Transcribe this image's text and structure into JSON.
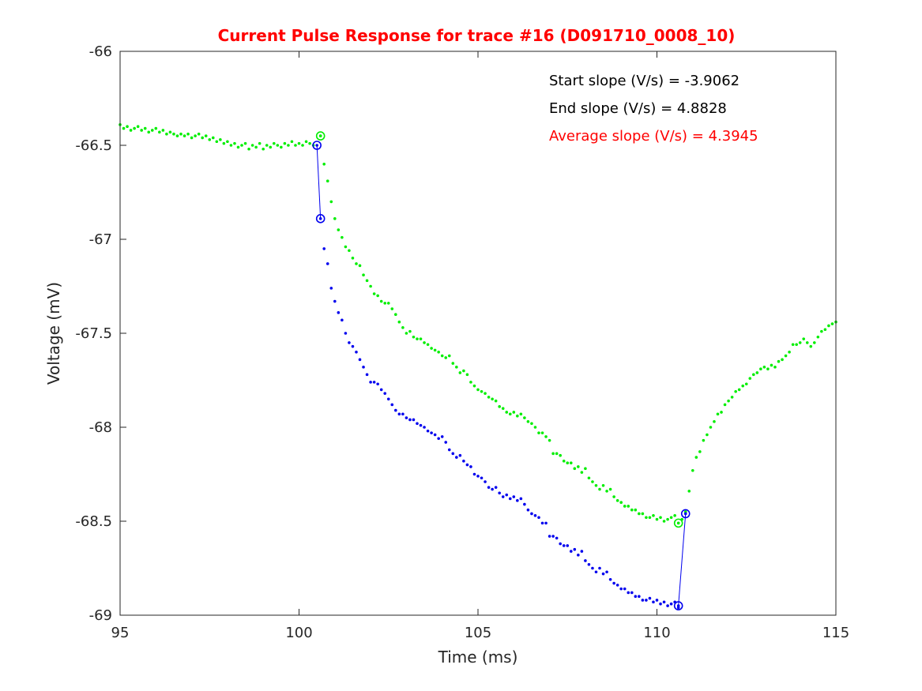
{
  "chart_data": {
    "type": "scatter",
    "title": "Current Pulse Response for trace #16 (D091710_0008_10)",
    "xlabel": "Time (ms)",
    "ylabel": "Voltage (mV)",
    "xlim": [
      95,
      115
    ],
    "ylim": [
      -69,
      -66
    ],
    "xticks": [
      95,
      100,
      105,
      110,
      115
    ],
    "xtick_labels": [
      "95",
      "100",
      "105",
      "110",
      "115"
    ],
    "yticks": [
      -66,
      -66.5,
      -67,
      -67.5,
      -68,
      -68.5,
      -69
    ],
    "ytick_labels": [
      "-66",
      "-66.5",
      "-67",
      "-67.5",
      "-68",
      "-68.5",
      "-69"
    ],
    "grid": false,
    "colors": {
      "green": "#00ee00",
      "blue": "#0000ee",
      "title": "#ff0000",
      "average": "#ff0000"
    },
    "annotations": [
      {
        "text": "Start slope (V/s) = -3.9062",
        "color": "#000000"
      },
      {
        "text": "End slope (V/s) = 4.8828",
        "color": "#000000"
      },
      {
        "text": "Average slope (V/s) = 4.3945",
        "color": "#ff0000"
      }
    ],
    "green_series": {
      "points": [
        [
          95.0,
          -66.39
        ],
        [
          95.1,
          -66.41
        ],
        [
          95.2,
          -66.4
        ],
        [
          95.3,
          -66.42
        ],
        [
          95.4,
          -66.41
        ],
        [
          95.5,
          -66.4
        ],
        [
          95.6,
          -66.42
        ],
        [
          95.7,
          -66.41
        ],
        [
          95.8,
          -66.43
        ],
        [
          95.9,
          -66.42
        ],
        [
          96.0,
          -66.41
        ],
        [
          96.1,
          -66.43
        ],
        [
          96.2,
          -66.42
        ],
        [
          96.3,
          -66.44
        ],
        [
          96.4,
          -66.43
        ],
        [
          96.5,
          -66.44
        ],
        [
          96.6,
          -66.45
        ],
        [
          96.7,
          -66.44
        ],
        [
          96.8,
          -66.45
        ],
        [
          96.9,
          -66.44
        ],
        [
          97.0,
          -66.46
        ],
        [
          97.1,
          -66.45
        ],
        [
          97.2,
          -66.44
        ],
        [
          97.3,
          -66.46
        ],
        [
          97.4,
          -66.45
        ],
        [
          97.5,
          -66.47
        ],
        [
          97.6,
          -66.46
        ],
        [
          97.7,
          -66.48
        ],
        [
          97.8,
          -66.47
        ],
        [
          97.9,
          -66.49
        ],
        [
          98.0,
          -66.48
        ],
        [
          98.1,
          -66.5
        ],
        [
          98.2,
          -66.49
        ],
        [
          98.3,
          -66.51
        ],
        [
          98.4,
          -66.5
        ],
        [
          98.5,
          -66.49
        ],
        [
          98.6,
          -66.52
        ],
        [
          98.7,
          -66.5
        ],
        [
          98.8,
          -66.51
        ],
        [
          98.9,
          -66.49
        ],
        [
          99.0,
          -66.52
        ],
        [
          99.1,
          -66.5
        ],
        [
          99.2,
          -66.51
        ],
        [
          99.3,
          -66.49
        ],
        [
          99.4,
          -66.5
        ],
        [
          99.5,
          -66.51
        ],
        [
          99.6,
          -66.49
        ],
        [
          99.7,
          -66.5
        ],
        [
          99.8,
          -66.48
        ],
        [
          99.9,
          -66.5
        ],
        [
          100.0,
          -66.49
        ],
        [
          100.1,
          -66.5
        ],
        [
          100.2,
          -66.48
        ],
        [
          100.3,
          -66.49
        ],
        [
          100.4,
          -66.5
        ],
        [
          100.6,
          -66.45
        ],
        [
          100.7,
          -66.6
        ],
        [
          100.8,
          -66.69
        ],
        [
          100.9,
          -66.8
        ],
        [
          101.0,
          -66.89
        ],
        [
          101.1,
          -66.95
        ],
        [
          101.2,
          -66.99
        ],
        [
          101.3,
          -67.04
        ],
        [
          101.4,
          -67.06
        ],
        [
          101.5,
          -67.1
        ],
        [
          101.6,
          -67.13
        ],
        [
          101.7,
          -67.14
        ],
        [
          101.8,
          -67.19
        ],
        [
          101.9,
          -67.22
        ],
        [
          102.0,
          -67.25
        ],
        [
          102.1,
          -67.29
        ],
        [
          102.2,
          -67.3
        ],
        [
          102.3,
          -67.33
        ],
        [
          102.4,
          -67.34
        ],
        [
          102.5,
          -67.34
        ],
        [
          102.6,
          -67.37
        ],
        [
          102.7,
          -67.4
        ],
        [
          102.8,
          -67.44
        ],
        [
          102.9,
          -67.47
        ],
        [
          103.0,
          -67.5
        ],
        [
          103.1,
          -67.49
        ],
        [
          103.2,
          -67.52
        ],
        [
          103.3,
          -67.53
        ],
        [
          103.4,
          -67.53
        ],
        [
          103.5,
          -67.55
        ],
        [
          103.6,
          -67.56
        ],
        [
          103.7,
          -67.58
        ],
        [
          103.8,
          -67.59
        ],
        [
          103.9,
          -67.6
        ],
        [
          104.0,
          -67.62
        ],
        [
          104.1,
          -67.63
        ],
        [
          104.2,
          -67.62
        ],
        [
          104.3,
          -67.66
        ],
        [
          104.4,
          -67.68
        ],
        [
          104.5,
          -67.71
        ],
        [
          104.6,
          -67.7
        ],
        [
          104.7,
          -67.72
        ],
        [
          104.8,
          -67.76
        ],
        [
          104.9,
          -67.78
        ],
        [
          105.0,
          -67.8
        ],
        [
          105.1,
          -67.81
        ],
        [
          105.2,
          -67.82
        ],
        [
          105.3,
          -67.84
        ],
        [
          105.4,
          -67.85
        ],
        [
          105.5,
          -67.86
        ],
        [
          105.6,
          -67.89
        ],
        [
          105.7,
          -67.9
        ],
        [
          105.8,
          -67.92
        ],
        [
          105.9,
          -67.93
        ],
        [
          106.0,
          -67.92
        ],
        [
          106.1,
          -67.94
        ],
        [
          106.2,
          -67.93
        ],
        [
          106.3,
          -67.95
        ],
        [
          106.4,
          -67.97
        ],
        [
          106.5,
          -67.98
        ],
        [
          106.6,
          -68.0
        ],
        [
          106.7,
          -68.03
        ],
        [
          106.8,
          -68.03
        ],
        [
          106.9,
          -68.05
        ],
        [
          107.0,
          -68.07
        ],
        [
          107.1,
          -68.14
        ],
        [
          107.2,
          -68.14
        ],
        [
          107.3,
          -68.15
        ],
        [
          107.4,
          -68.18
        ],
        [
          107.5,
          -68.19
        ],
        [
          107.6,
          -68.19
        ],
        [
          107.7,
          -68.22
        ],
        [
          107.8,
          -68.21
        ],
        [
          107.9,
          -68.24
        ],
        [
          108.0,
          -68.22
        ],
        [
          108.1,
          -68.27
        ],
        [
          108.2,
          -68.29
        ],
        [
          108.3,
          -68.31
        ],
        [
          108.4,
          -68.33
        ],
        [
          108.5,
          -68.31
        ],
        [
          108.6,
          -68.34
        ],
        [
          108.7,
          -68.33
        ],
        [
          108.8,
          -68.37
        ],
        [
          108.9,
          -68.39
        ],
        [
          109.0,
          -68.4
        ],
        [
          109.1,
          -68.42
        ],
        [
          109.2,
          -68.42
        ],
        [
          109.3,
          -68.44
        ],
        [
          109.4,
          -68.44
        ],
        [
          109.5,
          -68.46
        ],
        [
          109.6,
          -68.46
        ],
        [
          109.7,
          -68.48
        ],
        [
          109.8,
          -68.48
        ],
        [
          109.9,
          -68.47
        ],
        [
          110.0,
          -68.49
        ],
        [
          110.1,
          -68.48
        ],
        [
          110.2,
          -68.5
        ],
        [
          110.3,
          -68.49
        ],
        [
          110.4,
          -68.48
        ],
        [
          110.5,
          -68.47
        ],
        [
          110.6,
          -68.51
        ],
        [
          110.7,
          -68.49
        ],
        [
          110.8,
          -68.45
        ],
        [
          110.9,
          -68.34
        ],
        [
          111.0,
          -68.23
        ],
        [
          111.1,
          -68.16
        ],
        [
          111.2,
          -68.13
        ],
        [
          111.3,
          -68.07
        ],
        [
          111.4,
          -68.04
        ],
        [
          111.5,
          -68.0
        ],
        [
          111.6,
          -67.97
        ],
        [
          111.7,
          -67.93
        ],
        [
          111.8,
          -67.92
        ],
        [
          111.9,
          -67.88
        ],
        [
          112.0,
          -67.86
        ],
        [
          112.1,
          -67.84
        ],
        [
          112.2,
          -67.81
        ],
        [
          112.3,
          -67.8
        ],
        [
          112.4,
          -67.78
        ],
        [
          112.5,
          -67.77
        ],
        [
          112.6,
          -67.74
        ],
        [
          112.7,
          -67.72
        ],
        [
          112.8,
          -67.71
        ],
        [
          112.9,
          -67.69
        ],
        [
          113.0,
          -67.68
        ],
        [
          113.1,
          -67.69
        ],
        [
          113.2,
          -67.67
        ],
        [
          113.3,
          -67.68
        ],
        [
          113.4,
          -67.65
        ],
        [
          113.5,
          -67.64
        ],
        [
          113.6,
          -67.62
        ],
        [
          113.7,
          -67.6
        ],
        [
          113.8,
          -67.56
        ],
        [
          113.9,
          -67.56
        ],
        [
          114.0,
          -67.55
        ],
        [
          114.1,
          -67.53
        ],
        [
          114.2,
          -67.55
        ],
        [
          114.3,
          -67.57
        ],
        [
          114.4,
          -67.55
        ],
        [
          114.5,
          -67.52
        ],
        [
          114.6,
          -67.49
        ],
        [
          114.7,
          -67.48
        ],
        [
          114.8,
          -67.46
        ],
        [
          114.9,
          -67.45
        ],
        [
          115.0,
          -67.44
        ]
      ],
      "markers": [
        [
          100.6,
          -66.45
        ],
        [
          110.6,
          -68.51
        ]
      ]
    },
    "blue_series": {
      "points": [
        [
          100.7,
          -67.05
        ],
        [
          100.8,
          -67.13
        ],
        [
          100.9,
          -67.26
        ],
        [
          101.0,
          -67.33
        ],
        [
          101.1,
          -67.39
        ],
        [
          101.2,
          -67.43
        ],
        [
          101.3,
          -67.5
        ],
        [
          101.4,
          -67.55
        ],
        [
          101.5,
          -67.57
        ],
        [
          101.6,
          -67.6
        ],
        [
          101.7,
          -67.64
        ],
        [
          101.8,
          -67.68
        ],
        [
          101.9,
          -67.72
        ],
        [
          102.0,
          -67.76
        ],
        [
          102.1,
          -67.76
        ],
        [
          102.2,
          -67.77
        ],
        [
          102.3,
          -67.8
        ],
        [
          102.4,
          -67.82
        ],
        [
          102.5,
          -67.85
        ],
        [
          102.6,
          -67.88
        ],
        [
          102.7,
          -67.91
        ],
        [
          102.8,
          -67.93
        ],
        [
          102.9,
          -67.93
        ],
        [
          103.0,
          -67.95
        ],
        [
          103.1,
          -67.96
        ],
        [
          103.2,
          -67.96
        ],
        [
          103.3,
          -67.98
        ],
        [
          103.4,
          -67.99
        ],
        [
          103.5,
          -68.0
        ],
        [
          103.6,
          -68.02
        ],
        [
          103.7,
          -68.03
        ],
        [
          103.8,
          -68.04
        ],
        [
          103.9,
          -68.06
        ],
        [
          104.0,
          -68.05
        ],
        [
          104.1,
          -68.08
        ],
        [
          104.2,
          -68.12
        ],
        [
          104.3,
          -68.14
        ],
        [
          104.4,
          -68.16
        ],
        [
          104.5,
          -68.15
        ],
        [
          104.6,
          -68.18
        ],
        [
          104.7,
          -68.2
        ],
        [
          104.8,
          -68.21
        ],
        [
          104.9,
          -68.25
        ],
        [
          105.0,
          -68.26
        ],
        [
          105.1,
          -68.27
        ],
        [
          105.2,
          -68.29
        ],
        [
          105.3,
          -68.32
        ],
        [
          105.4,
          -68.33
        ],
        [
          105.5,
          -68.32
        ],
        [
          105.6,
          -68.35
        ],
        [
          105.7,
          -68.37
        ],
        [
          105.8,
          -68.36
        ],
        [
          105.9,
          -68.38
        ],
        [
          106.0,
          -68.37
        ],
        [
          106.1,
          -68.39
        ],
        [
          106.2,
          -68.38
        ],
        [
          106.3,
          -68.41
        ],
        [
          106.4,
          -68.44
        ],
        [
          106.5,
          -68.46
        ],
        [
          106.6,
          -68.47
        ],
        [
          106.7,
          -68.48
        ],
        [
          106.8,
          -68.51
        ],
        [
          106.9,
          -68.51
        ],
        [
          107.0,
          -68.58
        ],
        [
          107.1,
          -68.58
        ],
        [
          107.2,
          -68.59
        ],
        [
          107.3,
          -68.62
        ],
        [
          107.4,
          -68.63
        ],
        [
          107.5,
          -68.63
        ],
        [
          107.6,
          -68.66
        ],
        [
          107.7,
          -68.65
        ],
        [
          107.8,
          -68.68
        ],
        [
          107.9,
          -68.66
        ],
        [
          108.0,
          -68.71
        ],
        [
          108.1,
          -68.73
        ],
        [
          108.2,
          -68.75
        ],
        [
          108.3,
          -68.77
        ],
        [
          108.4,
          -68.75
        ],
        [
          108.5,
          -68.78
        ],
        [
          108.6,
          -68.77
        ],
        [
          108.7,
          -68.81
        ],
        [
          108.8,
          -68.83
        ],
        [
          108.9,
          -68.84
        ],
        [
          109.0,
          -68.86
        ],
        [
          109.1,
          -68.86
        ],
        [
          109.2,
          -68.88
        ],
        [
          109.3,
          -68.88
        ],
        [
          109.4,
          -68.9
        ],
        [
          109.5,
          -68.9
        ],
        [
          109.6,
          -68.92
        ],
        [
          109.7,
          -68.92
        ],
        [
          109.8,
          -68.91
        ],
        [
          109.9,
          -68.93
        ],
        [
          110.0,
          -68.92
        ],
        [
          110.1,
          -68.94
        ],
        [
          110.2,
          -68.93
        ],
        [
          110.3,
          -68.95
        ],
        [
          110.4,
          -68.94
        ],
        [
          110.5,
          -68.93
        ],
        [
          110.6,
          -68.96
        ]
      ],
      "markers": [
        [
          100.5,
          -66.5
        ],
        [
          100.6,
          -66.89
        ],
        [
          110.6,
          -68.95
        ],
        [
          110.8,
          -68.46
        ]
      ],
      "lines": [
        [
          [
            100.5,
            -66.5
          ],
          [
            100.6,
            -66.89
          ]
        ],
        [
          [
            110.6,
            -68.95
          ],
          [
            110.8,
            -68.46
          ]
        ]
      ]
    }
  }
}
